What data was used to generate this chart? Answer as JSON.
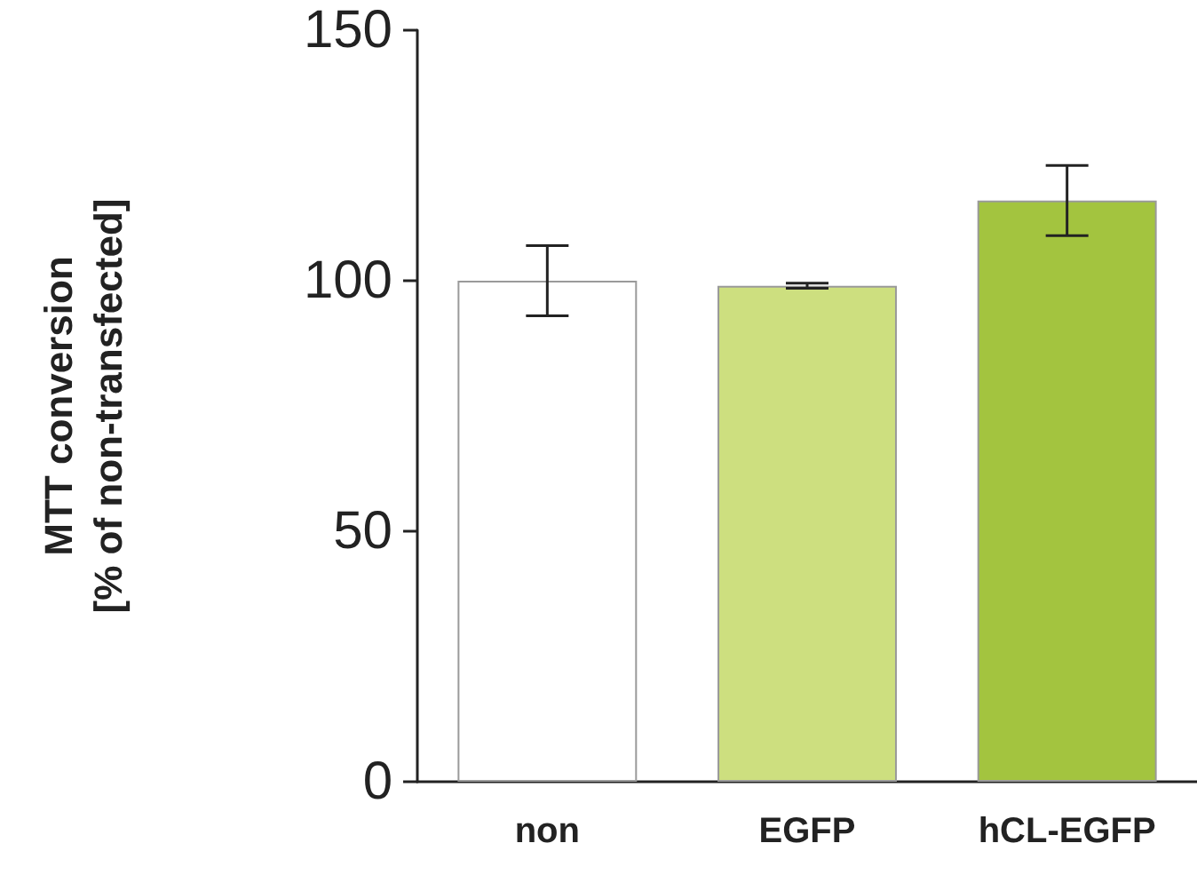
{
  "chart_data": {
    "type": "bar",
    "ylabel": "MTT conversion\n[% of non-transfected]",
    "categories": [
      "non",
      "EGFP",
      "hCL-EGFP"
    ],
    "values": [
      100,
      99,
      116
    ],
    "colors": [
      "#ffffff",
      "#cddf7f",
      "#a3c43f"
    ],
    "errors": [
      7,
      0.5,
      7
    ],
    "ylim": [
      0,
      150
    ],
    "yticks": [
      0,
      50,
      100,
      150
    ],
    "grid": false
  }
}
